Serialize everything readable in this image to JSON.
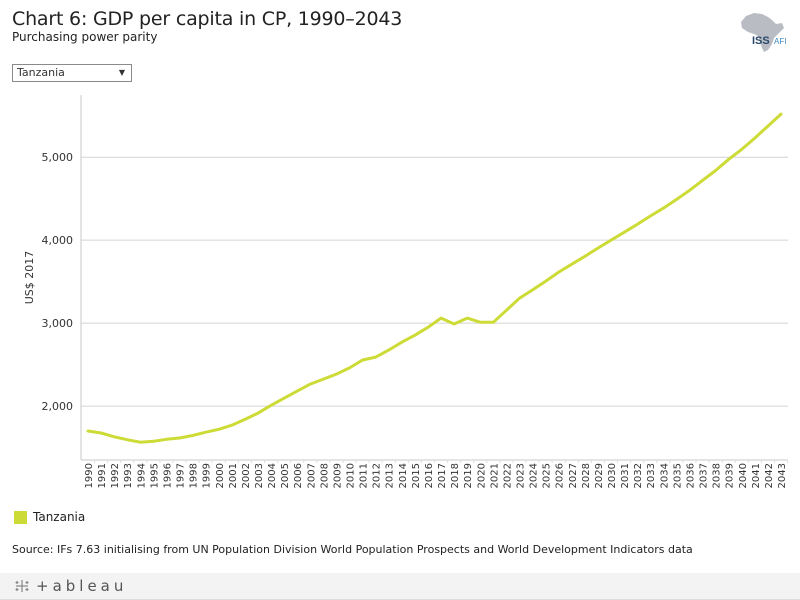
{
  "header": {
    "title": "Chart 6: GDP per capita in CP, 1990–2043",
    "subtitle": "Purchasing power parity"
  },
  "logo": {
    "text_iss": "ISS",
    "text_afi": "AFI",
    "icon": "africa-map-icon"
  },
  "filter": {
    "selected": "Tanzania"
  },
  "legend": {
    "items": [
      {
        "label": "Tanzania",
        "color": "#cddb36"
      }
    ]
  },
  "source": "Source: IFs 7.63 initialising from UN Population Division World Population Prospects and World Development Indicators data",
  "footer": {
    "brand": "+ableau"
  },
  "chart_data": {
    "type": "line",
    "title": "Chart 6: GDP per capita in CP, 1990–2043",
    "subtitle": "Purchasing power parity",
    "xlabel": "",
    "ylabel": "US$ 2017",
    "ylim": [
      1350,
      5750
    ],
    "yticks": [
      2000,
      3000,
      4000,
      5000
    ],
    "ytick_labels": [
      "2,000",
      "3,000",
      "4,000",
      "5,000"
    ],
    "grid": true,
    "legend_position": "bottom-left",
    "x": [
      1990,
      1991,
      1992,
      1993,
      1994,
      1995,
      1996,
      1997,
      1998,
      1999,
      2000,
      2001,
      2002,
      2003,
      2004,
      2005,
      2006,
      2007,
      2008,
      2009,
      2010,
      2011,
      2012,
      2013,
      2014,
      2015,
      2016,
      2017,
      2018,
      2019,
      2020,
      2021,
      2022,
      2023,
      2024,
      2025,
      2026,
      2027,
      2028,
      2029,
      2030,
      2031,
      2032,
      2033,
      2034,
      2035,
      2036,
      2037,
      2038,
      2039,
      2040,
      2041,
      2042,
      2043
    ],
    "series": [
      {
        "name": "Tanzania",
        "color": "#cddb36",
        "values": [
          1700,
          1675,
          1630,
          1595,
          1565,
          1575,
          1600,
          1615,
          1645,
          1685,
          1720,
          1770,
          1840,
          1915,
          2010,
          2095,
          2180,
          2265,
          2325,
          2385,
          2460,
          2555,
          2590,
          2675,
          2770,
          2855,
          2950,
          3060,
          2990,
          3060,
          3010,
          3010,
          3155,
          3300,
          3400,
          3505,
          3615,
          3710,
          3805,
          3905,
          4000,
          4095,
          4190,
          4290,
          4385,
          4490,
          4600,
          4720,
          4840,
          4975,
          5095,
          5230,
          5375,
          5520
        ]
      }
    ]
  }
}
